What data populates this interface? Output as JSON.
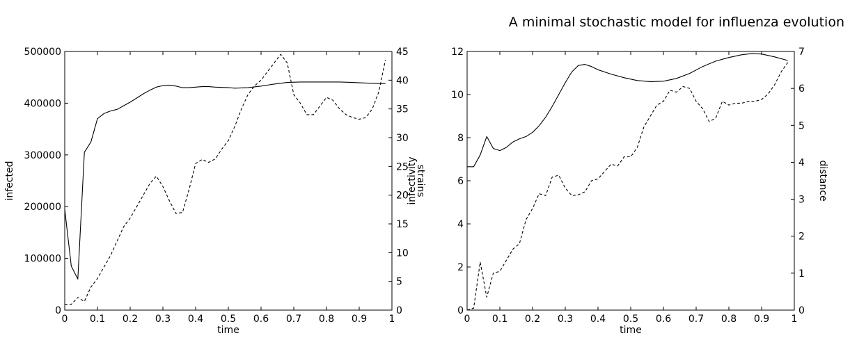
{
  "header": {
    "running_title": "A minimal stochastic model for influenza evolution"
  },
  "chart_data": [
    {
      "type": "line",
      "xlabel": "time",
      "ylabel_left": "infected",
      "ylabel_right": "strains",
      "xlim": [
        0,
        1
      ],
      "ylim_left": [
        0,
        500000
      ],
      "ylim_right": [
        0,
        45
      ],
      "x_ticks": [
        "0",
        "0.1",
        "0.2",
        "0.3",
        "0.4",
        "0.5",
        "0.6",
        "0.7",
        "0.8",
        "0.9",
        "1"
      ],
      "y_ticks_left": [
        "0",
        "100000",
        "200000",
        "300000",
        "400000",
        "500000"
      ],
      "y_ticks_right": [
        "0",
        "5",
        "10",
        "15",
        "20",
        "25",
        "30",
        "35",
        "40",
        "45"
      ],
      "grid": false,
      "series": [
        {
          "axis": "left",
          "style": "solid",
          "points": [
            [
              0,
              195000
            ],
            [
              0.02,
              85000
            ],
            [
              0.04,
              60000
            ],
            [
              0.06,
              305000
            ],
            [
              0.08,
              325000
            ],
            [
              0.1,
              370000
            ],
            [
              0.12,
              380000
            ],
            [
              0.14,
              385000
            ],
            [
              0.16,
              388000
            ],
            [
              0.18,
              395000
            ],
            [
              0.2,
              402000
            ],
            [
              0.22,
              410000
            ],
            [
              0.24,
              418000
            ],
            [
              0.26,
              425000
            ],
            [
              0.28,
              431000
            ],
            [
              0.3,
              434000
            ],
            [
              0.32,
              435000
            ],
            [
              0.34,
              433000
            ],
            [
              0.36,
              430000
            ],
            [
              0.38,
              430000
            ],
            [
              0.4,
              431000
            ],
            [
              0.42,
              432000
            ],
            [
              0.44,
              432000
            ],
            [
              0.46,
              431000
            ],
            [
              0.5,
              430000
            ],
            [
              0.52,
              429000
            ],
            [
              0.56,
              430000
            ],
            [
              0.6,
              433000
            ],
            [
              0.64,
              437000
            ],
            [
              0.68,
              440000
            ],
            [
              0.72,
              441000
            ],
            [
              0.76,
              441000
            ],
            [
              0.8,
              441000
            ],
            [
              0.84,
              441000
            ],
            [
              0.88,
              440000
            ],
            [
              0.92,
              439000
            ],
            [
              0.96,
              438000
            ],
            [
              0.98,
              438000
            ]
          ]
        },
        {
          "axis": "right",
          "style": "dashed",
          "points": [
            [
              0,
              1
            ],
            [
              0.02,
              1
            ],
            [
              0.04,
              2.2
            ],
            [
              0.06,
              1.5
            ],
            [
              0.08,
              4
            ],
            [
              0.1,
              5.5
            ],
            [
              0.12,
              7.5
            ],
            [
              0.14,
              9.5
            ],
            [
              0.16,
              12
            ],
            [
              0.18,
              14.5
            ],
            [
              0.2,
              16
            ],
            [
              0.22,
              18
            ],
            [
              0.24,
              20
            ],
            [
              0.26,
              22
            ],
            [
              0.28,
              23.3
            ],
            [
              0.3,
              21.5
            ],
            [
              0.32,
              19
            ],
            [
              0.34,
              16.8
            ],
            [
              0.36,
              17
            ],
            [
              0.38,
              21
            ],
            [
              0.4,
              25.5
            ],
            [
              0.42,
              26.2
            ],
            [
              0.44,
              25.7
            ],
            [
              0.46,
              26.3
            ],
            [
              0.48,
              28
            ],
            [
              0.5,
              29.5
            ],
            [
              0.52,
              32
            ],
            [
              0.54,
              35
            ],
            [
              0.56,
              37.5
            ],
            [
              0.58,
              39
            ],
            [
              0.6,
              40
            ],
            [
              0.62,
              41.5
            ],
            [
              0.64,
              43
            ],
            [
              0.66,
              44.5
            ],
            [
              0.68,
              43
            ],
            [
              0.7,
              37.5
            ],
            [
              0.72,
              36
            ],
            [
              0.74,
              34
            ],
            [
              0.76,
              34
            ],
            [
              0.78,
              35.5
            ],
            [
              0.8,
              37
            ],
            [
              0.82,
              36.5
            ],
            [
              0.84,
              35
            ],
            [
              0.86,
              34
            ],
            [
              0.88,
              33.5
            ],
            [
              0.9,
              33.2
            ],
            [
              0.92,
              33.5
            ],
            [
              0.94,
              35
            ],
            [
              0.96,
              38
            ],
            [
              0.98,
              43.5
            ]
          ]
        }
      ]
    },
    {
      "type": "line",
      "xlabel": "time",
      "ylabel_left": "infectivity",
      "ylabel_right": "distance",
      "xlim": [
        0,
        1
      ],
      "ylim_left": [
        0,
        12
      ],
      "ylim_right": [
        0,
        7
      ],
      "x_ticks": [
        "0",
        "0.1",
        "0.2",
        "0.3",
        "0.4",
        "0.5",
        "0.6",
        "0.7",
        "0.8",
        "0.9",
        "1"
      ],
      "y_ticks_left": [
        "0",
        "2",
        "4",
        "6",
        "8",
        "10",
        "12"
      ],
      "y_ticks_right": [
        "0",
        "1",
        "2",
        "3",
        "4",
        "5",
        "6",
        "7"
      ],
      "grid": false,
      "series": [
        {
          "axis": "left",
          "style": "solid",
          "points": [
            [
              0,
              6.65
            ],
            [
              0.02,
              6.65
            ],
            [
              0.04,
              7.2
            ],
            [
              0.06,
              8.05
            ],
            [
              0.08,
              7.5
            ],
            [
              0.1,
              7.4
            ],
            [
              0.12,
              7.55
            ],
            [
              0.14,
              7.8
            ],
            [
              0.16,
              7.95
            ],
            [
              0.18,
              8.05
            ],
            [
              0.2,
              8.25
            ],
            [
              0.22,
              8.55
            ],
            [
              0.24,
              8.95
            ],
            [
              0.26,
              9.45
            ],
            [
              0.28,
              10.0
            ],
            [
              0.3,
              10.55
            ],
            [
              0.32,
              11.05
            ],
            [
              0.34,
              11.35
            ],
            [
              0.36,
              11.4
            ],
            [
              0.38,
              11.3
            ],
            [
              0.4,
              11.15
            ],
            [
              0.44,
              10.95
            ],
            [
              0.48,
              10.78
            ],
            [
              0.52,
              10.65
            ],
            [
              0.56,
              10.6
            ],
            [
              0.6,
              10.62
            ],
            [
              0.64,
              10.75
            ],
            [
              0.68,
              10.98
            ],
            [
              0.72,
              11.3
            ],
            [
              0.76,
              11.55
            ],
            [
              0.8,
              11.72
            ],
            [
              0.84,
              11.85
            ],
            [
              0.87,
              11.9
            ],
            [
              0.9,
              11.88
            ],
            [
              0.94,
              11.75
            ],
            [
              0.98,
              11.58
            ]
          ]
        },
        {
          "axis": "right",
          "style": "dashed",
          "points": [
            [
              0,
              0
            ],
            [
              0.02,
              0.05
            ],
            [
              0.04,
              1.3
            ],
            [
              0.06,
              0.35
            ],
            [
              0.08,
              1.0
            ],
            [
              0.1,
              1.05
            ],
            [
              0.12,
              1.35
            ],
            [
              0.14,
              1.65
            ],
            [
              0.16,
              1.8
            ],
            [
              0.18,
              2.45
            ],
            [
              0.2,
              2.75
            ],
            [
              0.22,
              3.15
            ],
            [
              0.24,
              3.1
            ],
            [
              0.26,
              3.6
            ],
            [
              0.28,
              3.65
            ],
            [
              0.3,
              3.3
            ],
            [
              0.32,
              3.1
            ],
            [
              0.34,
              3.12
            ],
            [
              0.36,
              3.2
            ],
            [
              0.38,
              3.5
            ],
            [
              0.4,
              3.55
            ],
            [
              0.42,
              3.75
            ],
            [
              0.44,
              3.95
            ],
            [
              0.46,
              3.9
            ],
            [
              0.48,
              4.15
            ],
            [
              0.5,
              4.15
            ],
            [
              0.52,
              4.4
            ],
            [
              0.54,
              4.95
            ],
            [
              0.56,
              5.25
            ],
            [
              0.58,
              5.55
            ],
            [
              0.6,
              5.65
            ],
            [
              0.62,
              5.95
            ],
            [
              0.64,
              5.9
            ],
            [
              0.66,
              6.05
            ],
            [
              0.68,
              6.0
            ],
            [
              0.7,
              5.65
            ],
            [
              0.72,
              5.45
            ],
            [
              0.74,
              5.1
            ],
            [
              0.76,
              5.2
            ],
            [
              0.78,
              5.65
            ],
            [
              0.8,
              5.55
            ],
            [
              0.82,
              5.6
            ],
            [
              0.84,
              5.6
            ],
            [
              0.86,
              5.65
            ],
            [
              0.88,
              5.65
            ],
            [
              0.9,
              5.7
            ],
            [
              0.92,
              5.85
            ],
            [
              0.94,
              6.1
            ],
            [
              0.96,
              6.45
            ],
            [
              0.98,
              6.7
            ]
          ]
        }
      ]
    }
  ]
}
